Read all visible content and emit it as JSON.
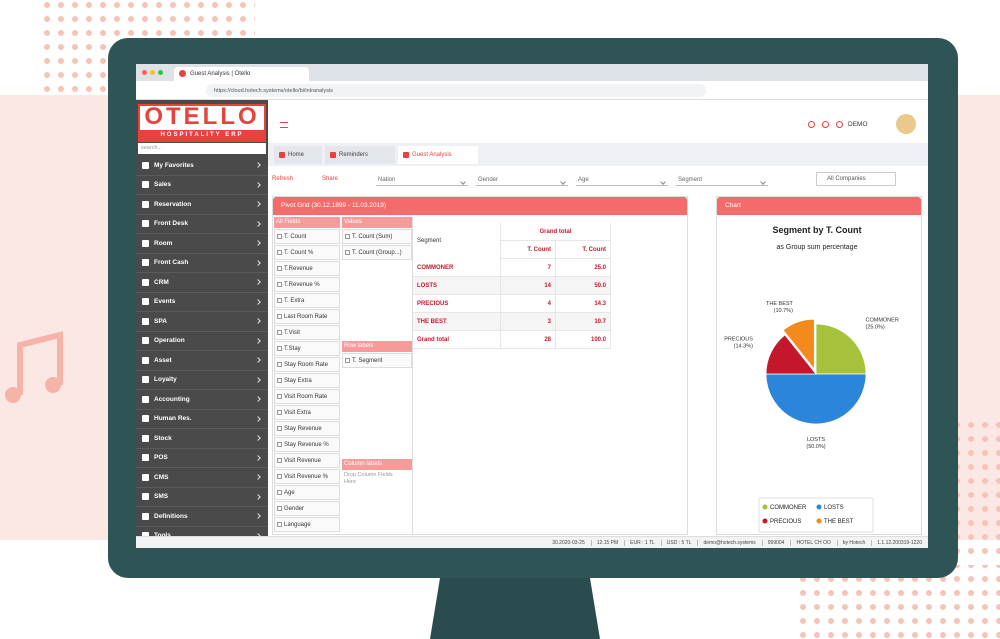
{
  "browser": {
    "tab_title": "Guest Analysis | Otello",
    "url": "https://cloud.hotech.systems/otello/bi/intranalysis"
  },
  "logo": {
    "name": "OTELLO",
    "tagline": "HOSPITALITY ERP"
  },
  "sidebar": {
    "search_placeholder": "search...",
    "menu": [
      "My Favorites",
      "Sales",
      "Reservation",
      "Front Desk",
      "Room",
      "Front Cash",
      "CRM",
      "Events",
      "SPA",
      "Operation",
      "Asset",
      "Loyalty",
      "Accounting",
      "Human Res.",
      "Stock",
      "POS",
      "CMS",
      "SMS",
      "Definitions",
      "Tools"
    ]
  },
  "topbar": {
    "user": "DEMO"
  },
  "tabs": [
    "Home",
    "Reminders",
    "Guest Analysis"
  ],
  "toolbar": {
    "refresh": "Refresh",
    "share": "Share",
    "filters": [
      "Nation",
      "Gender",
      "Age",
      "Segment"
    ],
    "companies": "All Companies"
  },
  "pivot": {
    "title": "Pivot Grid (30.12.1899 - 11.03.2019)",
    "fields_header": "All Fields",
    "fields": [
      "T. Count",
      "T. Count %",
      "T.Revenue",
      "T.Revenue %",
      "T. Extra",
      "Last Room Rate",
      "T.Visit",
      "T.Stay",
      "Stay Room Rate",
      "Stay Extra",
      "Visit Room Rate",
      "Visit Extra",
      "Stay Revenue",
      "Stay Revenue %",
      "Visit Revenue",
      "Visit Revenue %",
      "Age",
      "Gender",
      "Language"
    ],
    "values_header": "Values",
    "values": [
      "T. Count (Sum)",
      "T. Count (Group...)"
    ],
    "rows_header": "Row labels",
    "rows": [
      "T. Segment"
    ],
    "columns_header": "Column labels",
    "columns_hint": "Drop Column Fields Here",
    "table": {
      "row_header": "Segment",
      "column_group": "Grand total",
      "columns": [
        "T. Count",
        "T. Count"
      ],
      "rows": [
        [
          "COMMONER",
          "7",
          "25.0"
        ],
        [
          "LOSTS",
          "14",
          "50.0"
        ],
        [
          "PRECIOUS",
          "4",
          "14.3"
        ],
        [
          "THE BEST",
          "3",
          "10.7"
        ],
        [
          "Grand total",
          "28",
          "100.0"
        ]
      ]
    }
  },
  "chart_panel": {
    "title": "Chart"
  },
  "chart_data": {
    "type": "pie",
    "title": "Segment by T. Count",
    "subtitle": "as Group sum percentage",
    "categories": [
      "COMMONER",
      "LOSTS",
      "PRECIOUS",
      "THE BEST"
    ],
    "values": [
      25.0,
      50.0,
      14.3,
      10.7
    ],
    "value_labels": [
      "(25.0%)",
      "(50.0%)",
      "(14.3%)",
      "(10.7%)"
    ],
    "colors": [
      "#a5c23a",
      "#2b86d9",
      "#c3182c",
      "#f28a1c"
    ],
    "legend": "bottom"
  },
  "status_bar": [
    "30.2020-03-25",
    "12:15 PM",
    "EUR : 1 TL",
    "USD : 5 TL",
    "demo@hotech.systems",
    "999004",
    "HOTEL CH OO",
    "by Hotech",
    "1.1.12.200319-1220"
  ]
}
